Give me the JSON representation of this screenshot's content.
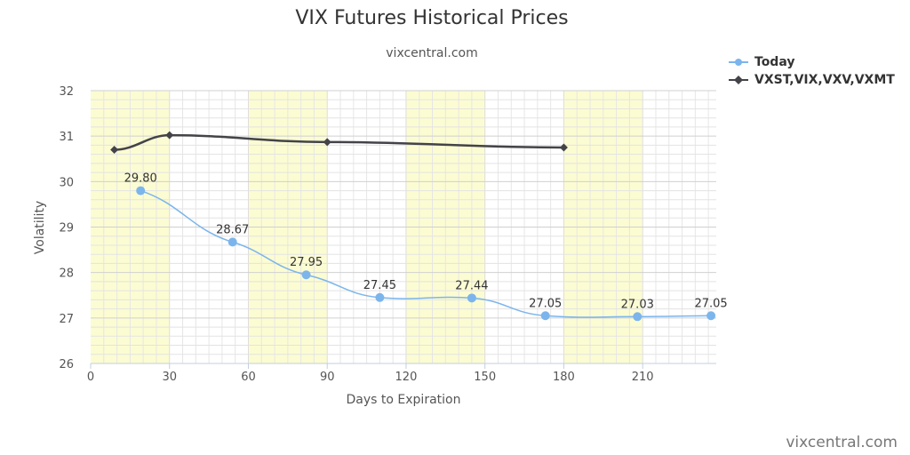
{
  "chart_data": {
    "type": "line",
    "title": "VIX Futures Historical Prices",
    "subtitle": "vixcentral.com",
    "credit": "vixcentral.com",
    "xlabel": "Days to Expiration",
    "ylabel": "Volatility",
    "xlim": [
      0,
      238
    ],
    "ylim": [
      26,
      32
    ],
    "x_ticks": [
      0,
      30,
      60,
      90,
      120,
      150,
      180,
      210
    ],
    "y_ticks": [
      26,
      27,
      28,
      29,
      30,
      31,
      32
    ],
    "x_tick_labels": [
      "0",
      "30",
      "60",
      "90",
      "120",
      "150",
      "180",
      "210"
    ],
    "y_tick_labels": [
      "26",
      "27",
      "28",
      "29",
      "30",
      "31",
      "32"
    ],
    "shaded_bands": [
      [
        0,
        30
      ],
      [
        60,
        90
      ],
      [
        120,
        150
      ],
      [
        180,
        210
      ]
    ],
    "grid": true,
    "legend_position": "top-right",
    "series": [
      {
        "name": "Today",
        "color": "#7cb5ec",
        "marker": "circle",
        "show_labels": true,
        "points": [
          {
            "x": 19,
            "y": 29.8,
            "label": "29.80"
          },
          {
            "x": 54,
            "y": 28.67,
            "label": "28.67"
          },
          {
            "x": 82,
            "y": 27.95,
            "label": "27.95"
          },
          {
            "x": 110,
            "y": 27.45,
            "label": "27.45"
          },
          {
            "x": 145,
            "y": 27.44,
            "label": "27.44"
          },
          {
            "x": 173,
            "y": 27.05,
            "label": "27.05"
          },
          {
            "x": 208,
            "y": 27.03,
            "label": "27.03"
          },
          {
            "x": 236,
            "y": 27.05,
            "label": "27.05"
          }
        ]
      },
      {
        "name": "VXST,VIX,VXV,VXMT",
        "color": "#434348",
        "marker": "diamond",
        "show_labels": false,
        "points": [
          {
            "x": 9,
            "y": 30.7
          },
          {
            "x": 30,
            "y": 31.02
          },
          {
            "x": 90,
            "y": 30.87
          },
          {
            "x": 180,
            "y": 30.75
          }
        ]
      }
    ]
  }
}
